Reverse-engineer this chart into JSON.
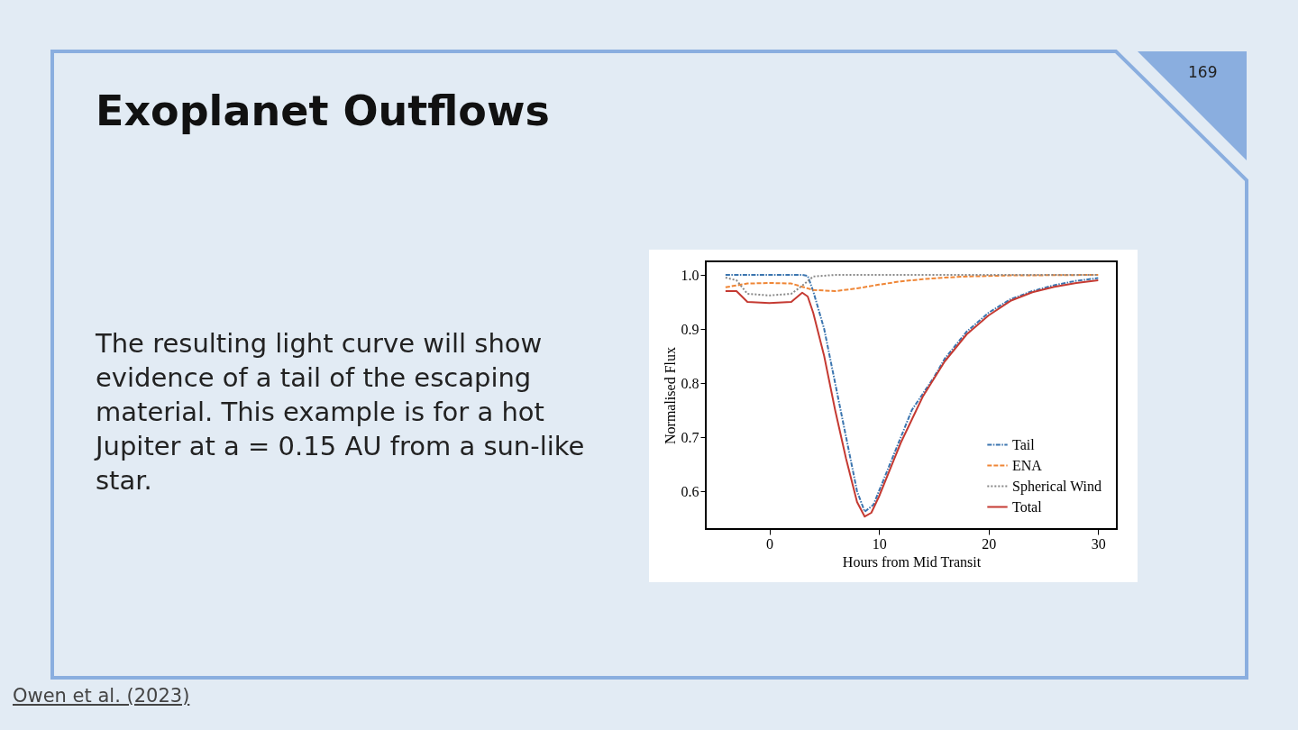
{
  "chart_data": {
    "type": "line",
    "title": "Exoplanet Outflows",
    "annotations": [
      "The resulting light curve will show evidence of a tail of the escaping material. This example is for a hot Jupiter at a = 0.15 AU from a sun-like star.",
      "169",
      "Owen et al. (2023)"
    ],
    "xlabel": "Hours from Mid Transit",
    "ylabel": "Normalised Flux",
    "xlim": [
      -5.8,
      31.7
    ],
    "ylim": [
      0.53,
      1.025
    ],
    "xticks": [
      0,
      10,
      20,
      30
    ],
    "yticks": [
      0.6,
      0.7,
      0.8,
      0.9,
      {
        "value": 1,
        "label": "1.0"
      }
    ],
    "grid": false,
    "legend": "bottom right",
    "marker": "none",
    "series": [
      {
        "name": "Tail",
        "color": "#3b75af",
        "line_style": "dashdot",
        "x": [
          -4,
          -2,
          0,
          2,
          3,
          3.5,
          4,
          5,
          6,
          7,
          8,
          8.7,
          9.5,
          10,
          11,
          12,
          13,
          14,
          15,
          16,
          17,
          18,
          20,
          22,
          24,
          26,
          28,
          30
        ],
        "values": [
          1.0,
          1.0,
          1.0,
          1.0,
          1.0,
          0.998,
          0.97,
          0.9,
          0.8,
          0.7,
          0.6,
          0.562,
          0.575,
          0.6,
          0.65,
          0.7,
          0.75,
          0.78,
          0.81,
          0.845,
          0.87,
          0.895,
          0.93,
          0.955,
          0.97,
          0.981,
          0.989,
          0.994
        ]
      },
      {
        "name": "ENA",
        "color": "#ef8636",
        "line_style": "dashed",
        "x": [
          -4,
          -2,
          0,
          2,
          3,
          4,
          6,
          8,
          10,
          12,
          14,
          16,
          18,
          22,
          30
        ],
        "values": [
          0.977,
          0.984,
          0.985,
          0.984,
          0.978,
          0.972,
          0.97,
          0.975,
          0.982,
          0.988,
          0.992,
          0.995,
          0.997,
          0.999,
          1.0
        ]
      },
      {
        "name": "Spherical Wind",
        "color": "#888888",
        "line_style": "dotted",
        "x": [
          -4,
          -3,
          -2,
          0,
          2,
          3,
          4,
          6,
          30
        ],
        "values": [
          0.995,
          0.99,
          0.965,
          0.962,
          0.965,
          0.98,
          0.997,
          1.0,
          1.0
        ]
      },
      {
        "name": "Total",
        "color": "#c53a32",
        "line_style": "solid",
        "x": [
          -4,
          -3,
          -2,
          0,
          2,
          3,
          3.5,
          4,
          5,
          6,
          7,
          8,
          8.7,
          9.3,
          10,
          12,
          14,
          16,
          18,
          20,
          22,
          24,
          26,
          28,
          30
        ],
        "values": [
          0.97,
          0.97,
          0.95,
          0.948,
          0.95,
          0.967,
          0.96,
          0.93,
          0.85,
          0.75,
          0.66,
          0.58,
          0.553,
          0.56,
          0.59,
          0.69,
          0.775,
          0.84,
          0.89,
          0.925,
          0.952,
          0.968,
          0.978,
          0.985,
          0.99
        ]
      }
    ]
  }
}
